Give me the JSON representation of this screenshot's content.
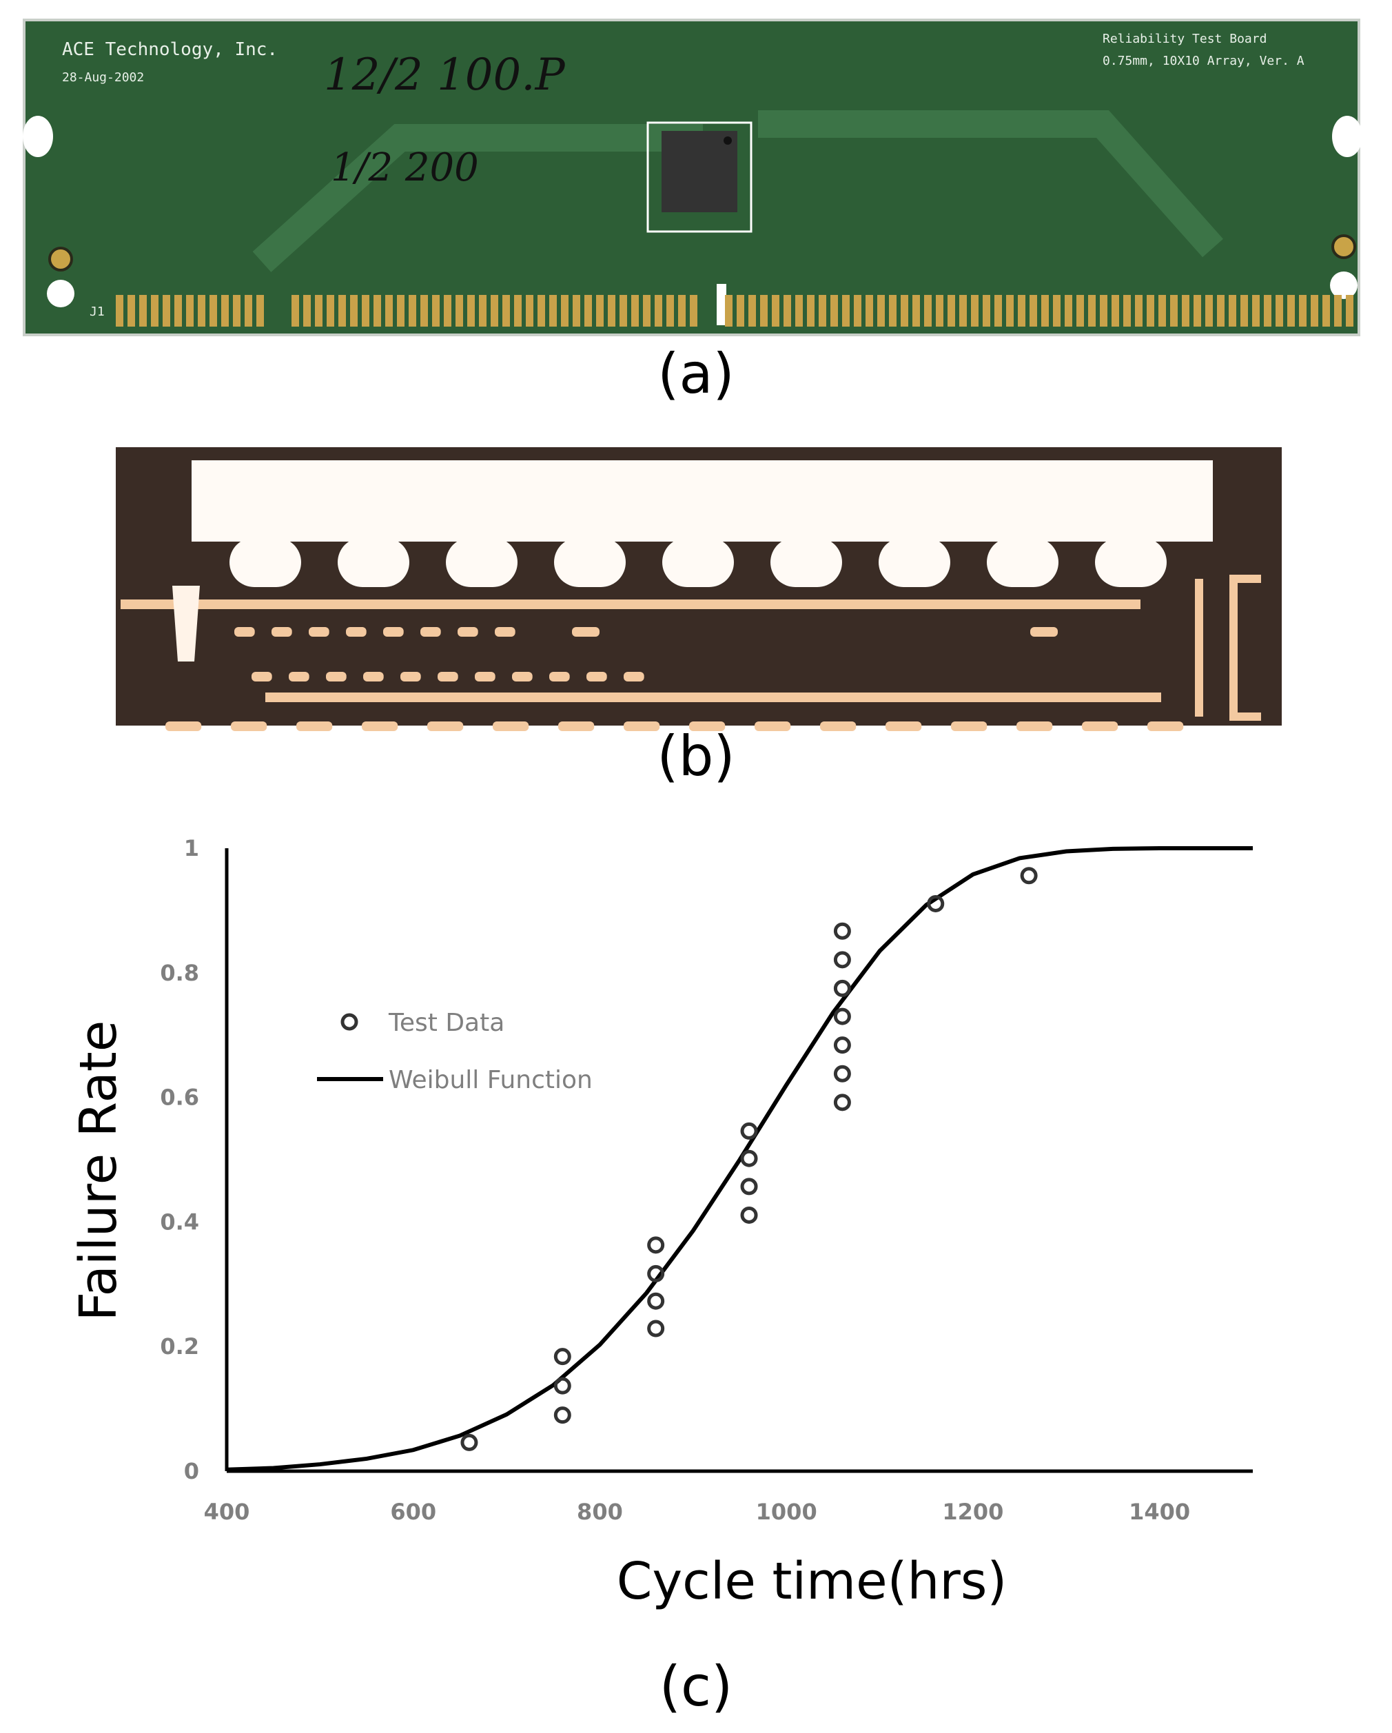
{
  "panels": {
    "a": {
      "label": "(a)",
      "company": "ACE Technology, Inc.",
      "date": "28-Aug-2002",
      "board_title": "Reliability Test Board",
      "board_spec": "0.75mm, 10X10 Array, Ver. A",
      "connector": "J1",
      "note_1": "12/2 100.P",
      "note_2": "1/2 200"
    },
    "b": {
      "label": "(b)"
    },
    "c": {
      "label": "(c)"
    }
  },
  "chart_data": {
    "type": "scatter",
    "x_label": "Cycle time(hrs)",
    "y_label": "Failure Rate",
    "xlim": [
      400,
      1500
    ],
    "xticks": [
      400,
      600,
      800,
      1000,
      1200,
      1400
    ],
    "ylim": [
      0,
      1
    ],
    "yticks": [
      0,
      0.2,
      0.4,
      0.6,
      0.8,
      1
    ],
    "grid": false,
    "legend": "upper left",
    "series": [
      {
        "name": "Test Data",
        "mode": "markers",
        "color": "#333333",
        "x": [
          660,
          760,
          760,
          760,
          860,
          860,
          860,
          860,
          960,
          960,
          960,
          960,
          1060,
          1060,
          1060,
          1060,
          1060,
          1060,
          1060,
          1160,
          1260
        ],
        "values": [
          0.046,
          0.184,
          0.137,
          0.09,
          0.363,
          0.317,
          0.273,
          0.229,
          0.546,
          0.502,
          0.457,
          0.411,
          0.867,
          0.821,
          0.775,
          0.73,
          0.684,
          0.638,
          0.592,
          0.911,
          0.956
        ]
      },
      {
        "name": "Weibull Function",
        "mode": "line",
        "color": "#000000",
        "x": [
          400,
          450,
          500,
          550,
          600,
          650,
          700,
          750,
          800,
          850,
          900,
          950,
          1000,
          1050,
          1100,
          1150,
          1200,
          1250,
          1300,
          1350,
          1400,
          1450,
          1500
        ],
        "values": [
          0.0025,
          0.005,
          0.011,
          0.02,
          0.034,
          0.057,
          0.091,
          0.138,
          0.203,
          0.286,
          0.386,
          0.5,
          0.62,
          0.736,
          0.835,
          0.909,
          0.958,
          0.984,
          0.995,
          0.999,
          1,
          1,
          1
        ]
      }
    ]
  }
}
